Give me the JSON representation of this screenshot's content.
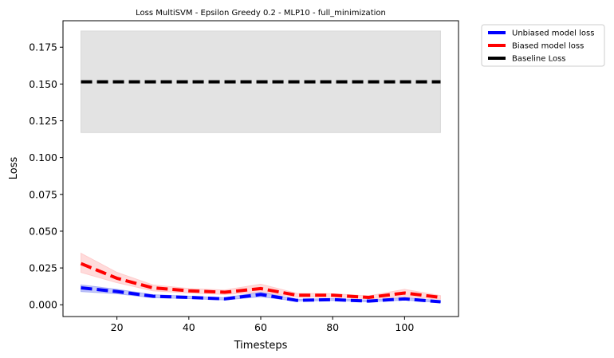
{
  "chart_data": {
    "type": "line",
    "title": "Loss MultiSVM - Epsilon Greedy 0.2 - MLP10 - full_minimization",
    "xlabel": "Timesteps",
    "ylabel": "Loss",
    "xlim": [
      5,
      115
    ],
    "ylim": [
      -0.008,
      0.193
    ],
    "x_ticks": [
      20,
      40,
      60,
      80,
      100
    ],
    "y_ticks": [
      0.0,
      0.025,
      0.05,
      0.075,
      0.1,
      0.125,
      0.15,
      0.175
    ],
    "y_tick_labels": [
      "0.000",
      "0.025",
      "0.050",
      "0.075",
      "0.100",
      "0.125",
      "0.150",
      "0.175"
    ],
    "grid": false,
    "legend_position": "outside-top-right",
    "x": [
      10,
      20,
      30,
      40,
      50,
      60,
      70,
      80,
      90,
      100,
      110
    ],
    "series": [
      {
        "name": "Unbiased model loss",
        "color": "#0000ff",
        "band_color": "#aab0f5",
        "values": [
          0.0115,
          0.009,
          0.0058,
          0.005,
          0.004,
          0.007,
          0.003,
          0.0035,
          0.0025,
          0.004,
          0.002
        ],
        "lower": [
          0.009,
          0.0075,
          0.0048,
          0.0042,
          0.0033,
          0.0055,
          0.0025,
          0.003,
          0.002,
          0.0032,
          0.0015
        ],
        "upper": [
          0.0135,
          0.0105,
          0.0068,
          0.0058,
          0.0048,
          0.0085,
          0.0037,
          0.0042,
          0.0032,
          0.0048,
          0.0028
        ]
      },
      {
        "name": "Biased model loss",
        "color": "#ff0000",
        "band_color": "#ffcccc",
        "values": [
          0.028,
          0.018,
          0.0115,
          0.0095,
          0.0085,
          0.011,
          0.0065,
          0.0065,
          0.005,
          0.008,
          0.005
        ],
        "lower": [
          0.022,
          0.015,
          0.0095,
          0.008,
          0.007,
          0.0085,
          0.0052,
          0.0055,
          0.004,
          0.0055,
          0.0038
        ],
        "upper": [
          0.035,
          0.022,
          0.0135,
          0.011,
          0.01,
          0.014,
          0.0078,
          0.0075,
          0.006,
          0.0105,
          0.0062
        ]
      },
      {
        "name": "Baseline Loss",
        "color": "#000000",
        "band_color": "#d9d9d9",
        "values": [
          0.1515,
          0.1515,
          0.1515,
          0.1515,
          0.1515,
          0.1515,
          0.1515,
          0.1515,
          0.1515,
          0.1515,
          0.1515
        ],
        "lower": [
          0.117,
          0.117,
          0.117,
          0.117,
          0.117,
          0.117,
          0.117,
          0.117,
          0.117,
          0.117,
          0.117
        ],
        "upper": [
          0.186,
          0.186,
          0.186,
          0.186,
          0.186,
          0.186,
          0.186,
          0.186,
          0.186,
          0.186,
          0.186
        ]
      }
    ]
  }
}
